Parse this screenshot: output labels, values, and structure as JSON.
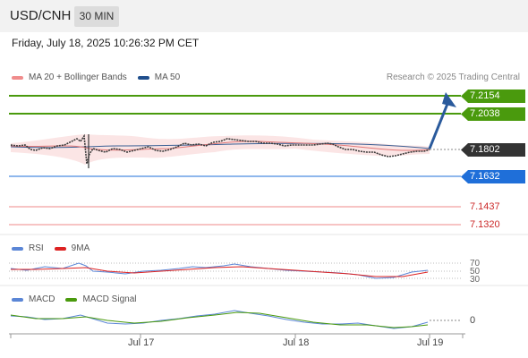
{
  "header": {
    "symbol": "USD/CNH",
    "interval": "30 MIN"
  },
  "datetime": "Friday, July 18, 2025 10:26:32 PM CET",
  "legend": {
    "bb_label": "MA 20 + Bollinger Bands",
    "bb_color": "#f08c8c",
    "ma50_label": "MA 50",
    "ma50_color": "#1f4e8c"
  },
  "credit": "Research © 2025 Trading Central",
  "levels": {
    "resistance_2": {
      "label": "7.2154",
      "color": "#4a9a0d"
    },
    "resistance_1": {
      "label": "7.2038",
      "color": "#4a9a0d"
    },
    "last": {
      "label": "7.1802",
      "color": "#333333"
    },
    "pivot": {
      "label": "7.1632",
      "color": "#1f6fd9"
    },
    "support_1": {
      "label": "7.1437",
      "color": "#cc2a2a"
    },
    "support_2": {
      "label": "7.1320",
      "color": "#cc2a2a"
    }
  },
  "rsi": {
    "label": "RSI",
    "label_color": "#5b86d6",
    "ma_label": "9MA",
    "ma_color": "#dd2222",
    "levels": [
      "70",
      "50",
      "30"
    ]
  },
  "macd": {
    "label": "MACD",
    "label_color": "#5b86d6",
    "signal_label": "MACD Signal",
    "signal_color": "#4a9a0d",
    "zero": "0"
  },
  "xaxis": [
    "Jul 17",
    "Jul 18",
    "Jul 19"
  ]
}
